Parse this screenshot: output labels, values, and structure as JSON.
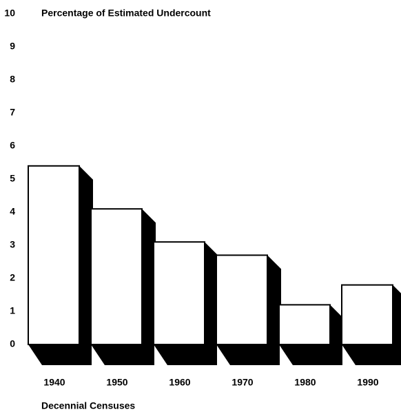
{
  "chart_data": {
    "type": "bar",
    "title": "Percentage of Estimated Undercount",
    "x_label": "Decennial Censuses",
    "categories": [
      "1940",
      "1950",
      "1960",
      "1970",
      "1980",
      "1990"
    ],
    "values": [
      5.4,
      4.1,
      3.1,
      2.7,
      1.2,
      1.8
    ],
    "color": "#ffffff",
    "ylim": [
      0,
      10
    ],
    "yticks": [
      0,
      1,
      2,
      3,
      4,
      5,
      6,
      7,
      8,
      9,
      10
    ],
    "grid": false
  }
}
